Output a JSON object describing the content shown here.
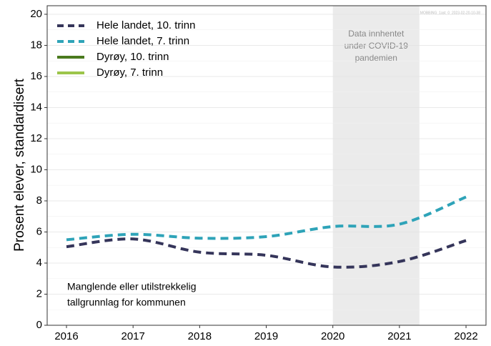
{
  "chart_data": {
    "type": "line",
    "y_label": "Prosent elever, standardisert",
    "watermark": "MOBBING_1ast_0_2023-02-20-10-38",
    "x": [
      2016,
      2017,
      2018,
      2019,
      2020,
      2021,
      2022
    ],
    "xlim": [
      2015.71,
      2022.3
    ],
    "xticks": [
      2016,
      2017,
      2018,
      2019,
      2020,
      2021,
      2022
    ],
    "ylim": [
      0,
      20.55
    ],
    "yticks": [
      0,
      2,
      4,
      6,
      8,
      10,
      12,
      14,
      16,
      18,
      20
    ],
    "y_minor_ticks": [
      1,
      3,
      5,
      7,
      9,
      11,
      13,
      15,
      17,
      19
    ],
    "grid": true,
    "legend": "top-left",
    "series": [
      {
        "name": "Hele landet, 10. trinn",
        "color": "#35355a",
        "dash": true,
        "values": [
          5.05,
          5.55,
          4.7,
          4.5,
          3.75,
          4.1,
          5.45
        ]
      },
      {
        "name": "Hele landet, 7. trinn",
        "color": "#2ea3b8",
        "dash": true,
        "values": [
          5.5,
          5.85,
          5.6,
          5.7,
          6.35,
          6.5,
          8.25
        ]
      },
      {
        "name": "Dyrøy, 10. trinn",
        "color": "#4a7a1e",
        "dash": false,
        "values": [
          null,
          null,
          null,
          null,
          null,
          null,
          null
        ]
      },
      {
        "name": "Dyrøy, 7. trinn",
        "color": "#9cc54a",
        "dash": false,
        "values": [
          null,
          null,
          null,
          null,
          null,
          null,
          null
        ]
      }
    ],
    "shade": {
      "xlim": [
        2020,
        2021.3
      ],
      "color": "#ebebeb",
      "label": [
        "Data innhentet",
        "under COVID-19",
        "pandemien"
      ]
    },
    "note": [
      "Manglende eller utilstrekkelig",
      "tallgrunnlag for kommunen"
    ]
  }
}
